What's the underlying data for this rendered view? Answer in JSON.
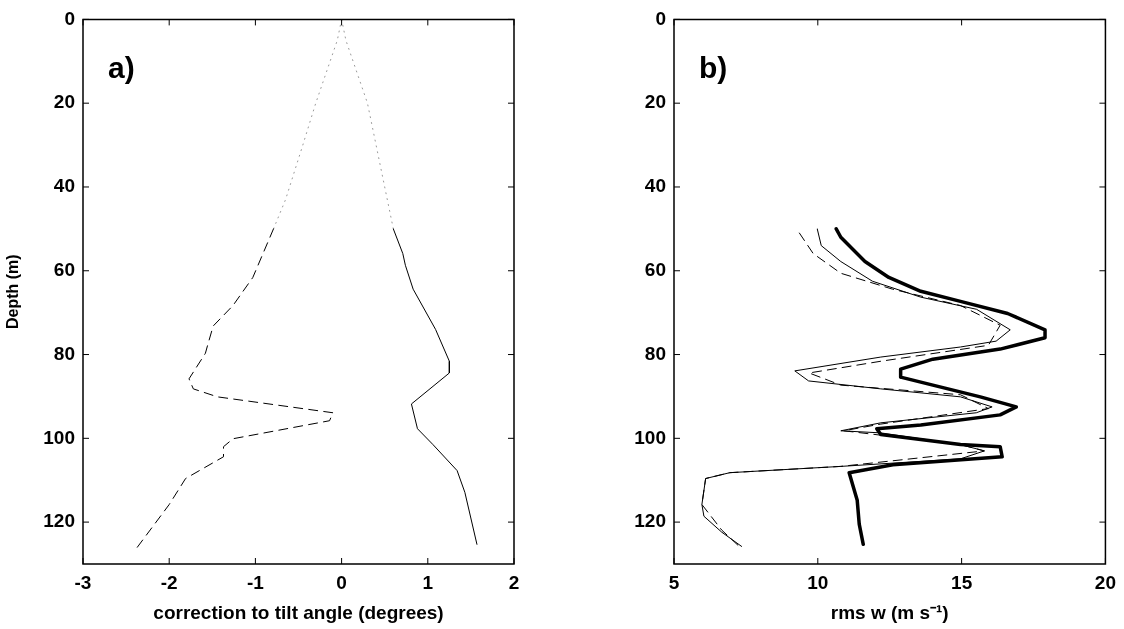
{
  "chart_data": [
    {
      "type": "line",
      "xlabel": "correction to tilt angle (degrees)",
      "ylabel": "Depth (m)",
      "annotations": [
        "a)"
      ],
      "xlim": [
        -3,
        2
      ],
      "xticks": [
        -3,
        -2,
        -1,
        0,
        1,
        2
      ],
      "ylim": [
        130,
        0
      ],
      "yticks": [
        0,
        20,
        40,
        60,
        80,
        100,
        120
      ],
      "grid": false,
      "legend": false,
      "marker": "none",
      "series": [
        {
          "color": "#000000",
          "line_style": "dashed",
          "x": [
            -0.79,
            -1.03,
            -1.26,
            -1.49,
            -1.56,
            -1.58,
            -1.77,
            -1.72,
            -1.44,
            -0.1,
            -0.14,
            -1.26,
            -1.37,
            -1.37,
            -1.81,
            -2.0,
            -2.37
          ],
          "values": [
            50,
            61.6,
            68.3,
            73.2,
            78.2,
            79.7,
            85.8,
            88.2,
            90.1,
            93.9,
            95.8,
            100.1,
            102,
            104.4,
            109.6,
            115.8,
            126
          ]
        },
        {
          "color": "#000000",
          "line_style": "solid",
          "x": [
            0.6,
            0.71,
            0.74,
            0.83,
            1.09,
            1.25,
            1.25,
            0.81,
            0.88,
            1.06,
            1.34,
            1.43,
            1.57
          ],
          "values": [
            50,
            55.9,
            58.7,
            64.4,
            74,
            81.6,
            84.4,
            91.8,
            97.7,
            101.5,
            107.7,
            112.9,
            125.3
          ]
        },
        {
          "color": "#999999",
          "line_style": "dotted",
          "x": [
            0,
            -0.05,
            -0.3,
            -0.45,
            -0.65,
            -0.79
          ],
          "values": [
            0,
            5,
            20,
            30,
            43,
            50
          ]
        },
        {
          "color": "#999999",
          "line_style": "dotted",
          "x": [
            0,
            0.05,
            0.3,
            0.4,
            0.55,
            0.6
          ],
          "values": [
            0,
            5,
            20,
            30,
            45,
            50
          ]
        }
      ]
    },
    {
      "type": "line",
      "xlabel": "rms w (m s⁻¹)",
      "annotations": [
        "b)"
      ],
      "xlim": [
        5,
        20
      ],
      "xticks": [
        5,
        10,
        15,
        20
      ],
      "ylim": [
        130,
        0
      ],
      "yticks": [
        0,
        20,
        40,
        60,
        80,
        100,
        120
      ],
      "grid": false,
      "legend": false,
      "marker": "none",
      "series": [
        {
          "color": "#000000",
          "line_style": "solid",
          "x": [
            10.64,
            10.8,
            11.64,
            12.47,
            13.58,
            14.96,
            16.6,
            17.9,
            17.9,
            16.34,
            14.0,
            12.88,
            12.88,
            14.0,
            15.65,
            16.9,
            16.34,
            13.58,
            12.05,
            12.19,
            14.96,
            16.34,
            16.41,
            12.61,
            11.09,
            11.37,
            11.44,
            11.58
          ],
          "values": [
            50,
            52,
            57.8,
            61.6,
            64.9,
            67.3,
            70.2,
            74.1,
            76,
            78.7,
            81.1,
            83.5,
            85.4,
            87.3,
            90.1,
            92.5,
            94.4,
            96.8,
            97.7,
            99.1,
            101.5,
            102,
            104.4,
            106.3,
            108.2,
            114.8,
            120.5,
            125.3
          ]
        },
        {
          "color": "#000000",
          "line_style": "solid",
          "x": [
            9.98,
            10.12,
            10.8,
            11.9,
            13.58,
            15.52,
            16.69,
            16.2,
            14.96,
            12.19,
            9.2,
            9.68,
            12.19,
            14.96,
            16.06,
            15.51,
            12.19,
            10.8,
            12.19,
            14.96,
            15.79,
            14.96,
            10.8,
            6.94,
            6.1,
            5.97,
            6.04,
            6.66,
            7.35
          ],
          "values": [
            50,
            54,
            57.8,
            62.5,
            66.3,
            69.2,
            74.1,
            76.8,
            78.2,
            80.6,
            83.9,
            86.3,
            88.2,
            90.1,
            92.5,
            93.9,
            96.3,
            98.2,
            98.7,
            101.5,
            103,
            104.9,
            106.7,
            108.2,
            109.6,
            115.8,
            118.6,
            122.4,
            125.8
          ]
        },
        {
          "color": "#000000",
          "line_style": "dashed",
          "x": [
            9.36,
            9.84,
            10.8,
            12.6,
            14.96,
            16.34,
            15.93,
            12.19,
            9.7,
            10.8,
            14.96,
            15.93,
            12.19,
            10.9,
            14.96,
            15.79,
            10.8,
            6.94,
            6.1,
            5.97,
            6.66,
            7.22
          ],
          "values": [
            51,
            55.9,
            60.6,
            64.4,
            68.3,
            73,
            77.8,
            81.6,
            84.4,
            87.3,
            89.6,
            92.9,
            96.6,
            98.2,
            101.5,
            103,
            106.7,
            108.2,
            109.6,
            115.8,
            121.9,
            125.5
          ]
        }
      ]
    }
  ]
}
